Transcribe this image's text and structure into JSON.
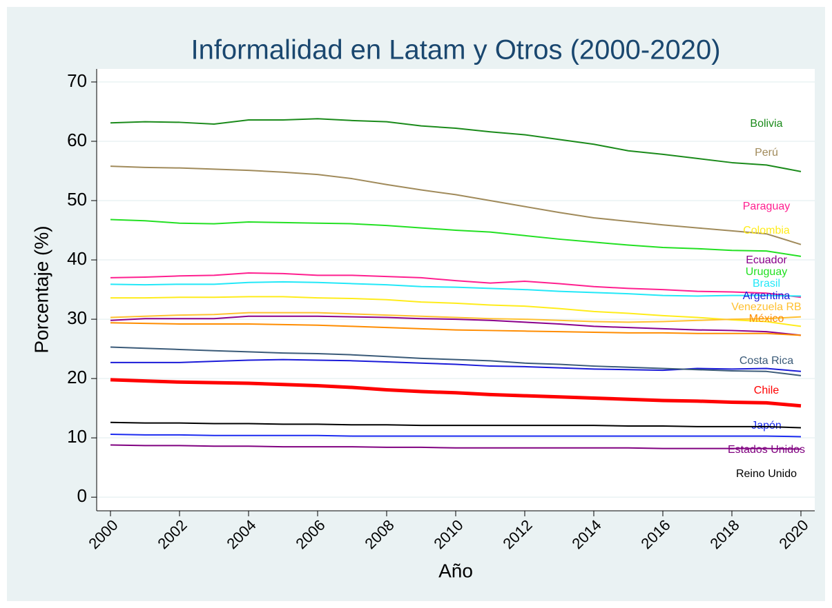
{
  "chart_data": {
    "type": "line",
    "title": "Informalidad en Latam y Otros (2000-2020)",
    "x_label": "Año",
    "y_label": "Porcentaje (%)",
    "x": [
      2000,
      2001,
      2002,
      2003,
      2004,
      2005,
      2006,
      2007,
      2008,
      2009,
      2010,
      2011,
      2012,
      2013,
      2014,
      2015,
      2016,
      2017,
      2018,
      2019,
      2020
    ],
    "xlim": [
      1999.6,
      2020.4
    ],
    "xticks": [
      2000,
      2002,
      2004,
      2006,
      2008,
      2010,
      2012,
      2014,
      2016,
      2018,
      2020
    ],
    "ylim": [
      -2.3,
      72.2
    ],
    "yticks": [
      0,
      10,
      20,
      30,
      40,
      50,
      60,
      70
    ],
    "grid": true,
    "series": [
      {
        "name": "Bolivia",
        "color": "#1a8a1a",
        "values": [
          63.1,
          63.3,
          63.2,
          62.9,
          63.6,
          63.6,
          63.8,
          63.5,
          63.3,
          62.6,
          62.2,
          61.6,
          61.1,
          60.3,
          59.5,
          58.4,
          57.8,
          57.1,
          56.4,
          56.0,
          54.9
        ]
      },
      {
        "name": "Perú",
        "color": "#a08a5a",
        "values": [
          55.8,
          55.6,
          55.5,
          55.3,
          55.1,
          54.8,
          54.4,
          53.7,
          52.7,
          51.8,
          51.0,
          50.0,
          49.0,
          48.0,
          47.1,
          46.5,
          45.9,
          45.4,
          44.9,
          44.4,
          42.6
        ]
      },
      {
        "name": "Paraguay",
        "color": "#ff1f8f",
        "values": [
          37.0,
          37.1,
          37.3,
          37.4,
          37.8,
          37.7,
          37.4,
          37.4,
          37.2,
          37.0,
          36.5,
          36.1,
          36.4,
          36.0,
          35.5,
          35.2,
          35.0,
          34.7,
          34.6,
          34.4,
          33.7
        ]
      },
      {
        "name": "Colombia",
        "color": "#ffec1a",
        "values": [
          33.6,
          33.6,
          33.7,
          33.7,
          33.8,
          33.8,
          33.6,
          33.5,
          33.3,
          32.9,
          32.7,
          32.4,
          32.2,
          31.8,
          31.3,
          31.0,
          30.6,
          30.3,
          29.9,
          29.6,
          28.8
        ]
      },
      {
        "name": "Ecuador",
        "color": "#8b008b",
        "values": [
          29.8,
          30.1,
          30.1,
          30.1,
          30.5,
          30.5,
          30.5,
          30.4,
          30.3,
          30.1,
          30.0,
          29.8,
          29.5,
          29.2,
          28.8,
          28.6,
          28.4,
          28.2,
          28.1,
          27.9,
          27.3
        ]
      },
      {
        "name": "Uruguay",
        "color": "#22e022",
        "values": [
          46.8,
          46.6,
          46.2,
          46.1,
          46.4,
          46.3,
          46.2,
          46.1,
          45.8,
          45.4,
          45.0,
          44.7,
          44.1,
          43.5,
          43.0,
          42.5,
          42.1,
          41.9,
          41.6,
          41.5,
          40.6
        ]
      },
      {
        "name": "Brasil",
        "color": "#22e8f8",
        "values": [
          35.9,
          35.8,
          35.9,
          35.9,
          36.2,
          36.3,
          36.2,
          36.0,
          35.8,
          35.5,
          35.4,
          35.2,
          35.0,
          34.7,
          34.5,
          34.3,
          34.0,
          33.9,
          34.0,
          34.0,
          33.9
        ]
      },
      {
        "name": "Argentina",
        "color": "#1a1ad8",
        "values": [
          22.7,
          22.7,
          22.7,
          22.9,
          23.1,
          23.2,
          23.1,
          23.0,
          22.8,
          22.6,
          22.4,
          22.1,
          22.0,
          21.8,
          21.6,
          21.5,
          21.4,
          21.7,
          21.6,
          21.7,
          21.2
        ]
      },
      {
        "name": "Venezuela RB",
        "color": "#ffc030",
        "values": [
          30.3,
          30.5,
          30.7,
          30.8,
          31.1,
          31.1,
          31.1,
          30.9,
          30.7,
          30.5,
          30.3,
          30.1,
          30.0,
          29.8,
          29.6,
          29.5,
          29.6,
          29.8,
          30.0,
          30.1,
          30.4
        ]
      },
      {
        "name": "México",
        "color": "#ff8c00",
        "values": [
          29.4,
          29.3,
          29.2,
          29.2,
          29.2,
          29.1,
          29.0,
          28.8,
          28.6,
          28.4,
          28.2,
          28.1,
          28.0,
          27.9,
          27.8,
          27.7,
          27.7,
          27.6,
          27.6,
          27.6,
          27.3
        ]
      },
      {
        "name": "Costa Rica",
        "color": "#3a5a78",
        "values": [
          25.3,
          25.1,
          24.9,
          24.7,
          24.5,
          24.3,
          24.2,
          24.0,
          23.7,
          23.4,
          23.2,
          23.0,
          22.6,
          22.4,
          22.1,
          21.9,
          21.7,
          21.5,
          21.3,
          21.2,
          20.5
        ]
      },
      {
        "name": "Chile",
        "color": "#ff0000",
        "width": 5,
        "values": [
          19.8,
          19.6,
          19.4,
          19.3,
          19.2,
          19.0,
          18.8,
          18.5,
          18.1,
          17.8,
          17.6,
          17.3,
          17.1,
          16.9,
          16.7,
          16.5,
          16.3,
          16.2,
          16.0,
          15.9,
          15.4
        ]
      },
      {
        "name": "Japón",
        "color": "#1a2af0",
        "values": [
          10.6,
          10.5,
          10.5,
          10.4,
          10.4,
          10.4,
          10.4,
          10.3,
          10.3,
          10.3,
          10.3,
          10.3,
          10.3,
          10.3,
          10.3,
          10.3,
          10.3,
          10.3,
          10.3,
          10.3,
          10.2
        ]
      },
      {
        "name": "Estados Unidos",
        "color": "#800080",
        "values": [
          8.8,
          8.7,
          8.7,
          8.6,
          8.6,
          8.5,
          8.5,
          8.5,
          8.4,
          8.4,
          8.3,
          8.3,
          8.3,
          8.3,
          8.3,
          8.3,
          8.2,
          8.2,
          8.2,
          8.2,
          8.1
        ]
      },
      {
        "name": "Reino Unido",
        "color": "#000000",
        "values": [
          12.6,
          12.5,
          12.5,
          12.4,
          12.4,
          12.3,
          12.3,
          12.2,
          12.2,
          12.1,
          12.1,
          12.1,
          12.1,
          12.1,
          12.1,
          12.0,
          12.0,
          11.9,
          11.9,
          11.9,
          11.7
        ]
      }
    ]
  }
}
